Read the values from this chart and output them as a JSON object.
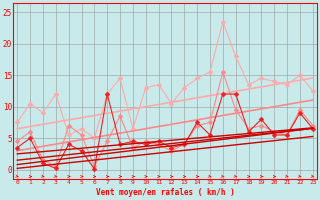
{
  "x": [
    0,
    1,
    2,
    3,
    4,
    5,
    6,
    7,
    8,
    9,
    10,
    11,
    12,
    13,
    14,
    15,
    16,
    17,
    18,
    19,
    20,
    21,
    22,
    23
  ],
  "background_color": "#c8eaea",
  "xlabel": "Vent moyen/en rafales ( km/h )",
  "ylabel_ticks": [
    0,
    5,
    10,
    15,
    20,
    25
  ],
  "xlim": [
    -0.3,
    23.3
  ],
  "ylim": [
    -1.5,
    26.5
  ],
  "series": [
    {
      "label": "light_pink_jagged",
      "color": "#ffaaaa",
      "lw": 0.8,
      "ms": 2.5,
      "marker": "D",
      "data": [
        7.5,
        10.5,
        9.0,
        12.0,
        5.5,
        6.5,
        5.0,
        12.0,
        14.5,
        6.5,
        13.0,
        13.5,
        10.5,
        13.0,
        14.5,
        15.5,
        23.5,
        18.0,
        13.5,
        14.5,
        14.0,
        13.5,
        15.0,
        12.5
      ]
    },
    {
      "label": "light_pink_trend",
      "color": "#ffaaaa",
      "lw": 1.2,
      "ms": 0,
      "marker": null,
      "data": [
        6.5,
        6.85,
        7.2,
        7.55,
        7.9,
        8.25,
        8.6,
        8.95,
        9.3,
        9.65,
        10.0,
        10.35,
        10.7,
        11.05,
        11.4,
        11.75,
        12.1,
        12.45,
        12.8,
        13.15,
        13.5,
        13.85,
        14.2,
        14.55
      ]
    },
    {
      "label": "mid_pink_jagged",
      "color": "#ff8888",
      "lw": 0.8,
      "ms": 2.5,
      "marker": "D",
      "data": [
        4.5,
        6.0,
        1.5,
        0.5,
        7.0,
        5.5,
        0.5,
        4.5,
        8.5,
        3.5,
        4.5,
        4.0,
        3.0,
        4.0,
        7.0,
        7.5,
        15.5,
        9.5,
        6.5,
        7.0,
        6.0,
        5.5,
        9.5,
        7.0
      ]
    },
    {
      "label": "mid_pink_trend",
      "color": "#ff8888",
      "lw": 1.2,
      "ms": 0,
      "marker": null,
      "data": [
        3.0,
        3.35,
        3.7,
        4.05,
        4.4,
        4.75,
        5.1,
        5.45,
        5.8,
        6.15,
        6.5,
        6.85,
        7.2,
        7.55,
        7.9,
        8.25,
        8.6,
        8.95,
        9.3,
        9.65,
        10.0,
        10.35,
        10.7,
        11.05
      ]
    },
    {
      "label": "dark_red_jagged",
      "color": "#ee2222",
      "lw": 0.8,
      "ms": 2.5,
      "marker": "D",
      "data": [
        3.5,
        5.0,
        1.0,
        0.2,
        4.0,
        3.0,
        0.1,
        12.0,
        4.0,
        4.5,
        4.0,
        4.5,
        3.5,
        4.0,
        7.5,
        5.5,
        12.0,
        12.0,
        6.0,
        8.0,
        5.5,
        5.5,
        9.0,
        6.5
      ]
    },
    {
      "label": "dark_red_trend1",
      "color": "#cc0000",
      "lw": 1.0,
      "ms": 0,
      "marker": null,
      "data": [
        0.2,
        0.42,
        0.64,
        0.86,
        1.08,
        1.3,
        1.52,
        1.74,
        1.96,
        2.18,
        2.4,
        2.62,
        2.84,
        3.06,
        3.28,
        3.5,
        3.72,
        3.94,
        4.16,
        4.38,
        4.6,
        4.82,
        5.04,
        5.26
      ]
    },
    {
      "label": "dark_red_trend2",
      "color": "#cc0000",
      "lw": 1.0,
      "ms": 0,
      "marker": null,
      "data": [
        0.8,
        1.05,
        1.3,
        1.55,
        1.8,
        2.05,
        2.3,
        2.55,
        2.8,
        3.05,
        3.3,
        3.55,
        3.8,
        4.05,
        4.3,
        4.55,
        4.8,
        5.05,
        5.3,
        5.55,
        5.8,
        6.05,
        6.3,
        6.55
      ]
    },
    {
      "label": "dark_red_trend3",
      "color": "#cc0000",
      "lw": 1.0,
      "ms": 0,
      "marker": null,
      "data": [
        1.5,
        1.72,
        1.94,
        2.16,
        2.38,
        2.6,
        2.82,
        3.04,
        3.26,
        3.48,
        3.7,
        3.92,
        4.14,
        4.36,
        4.58,
        4.8,
        5.02,
        5.24,
        5.46,
        5.68,
        5.9,
        6.12,
        6.34,
        6.56
      ]
    },
    {
      "label": "dark_red_trend4",
      "color": "#cc0000",
      "lw": 1.0,
      "ms": 0,
      "marker": null,
      "data": [
        2.5,
        2.68,
        2.86,
        3.04,
        3.22,
        3.4,
        3.58,
        3.76,
        3.94,
        4.12,
        4.3,
        4.48,
        4.66,
        4.84,
        5.02,
        5.2,
        5.38,
        5.56,
        5.74,
        5.92,
        6.1,
        6.28,
        6.46,
        6.64
      ]
    }
  ],
  "wind_angles": [
    225,
    270,
    225,
    225,
    270,
    270,
    270,
    270,
    270,
    270,
    270,
    270,
    270,
    270,
    270,
    225,
    225,
    225,
    270,
    270,
    270,
    225,
    225,
    225
  ]
}
